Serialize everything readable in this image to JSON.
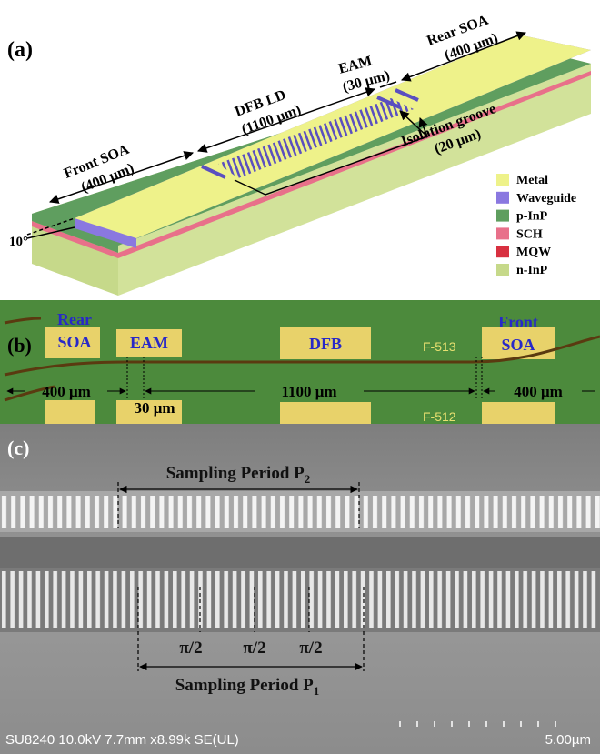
{
  "panel_a": {
    "label": "(a)",
    "front_soa": [
      "Front SOA",
      "(400 μm)"
    ],
    "dfb_ld": [
      "DFB LD",
      "(1100 μm)"
    ],
    "eam": [
      "EAM",
      "(30 μm)"
    ],
    "rear_soa": [
      "Rear SOA",
      "(400 μm)"
    ],
    "isolation_groove": [
      "Isolation groove",
      "(20 μm)"
    ],
    "angle": "10°",
    "legend": [
      {
        "name": "Metal",
        "color": "#eef28a"
      },
      {
        "name": "Waveguide",
        "color": "#8a78e0"
      },
      {
        "name": "p-InP",
        "color": "#5f9e5f"
      },
      {
        "name": "SCH",
        "color": "#e8708a"
      },
      {
        "name": "MQW",
        "color": "#d83040"
      },
      {
        "name": "n-InP",
        "color": "#c6d98a"
      }
    ]
  },
  "panel_b": {
    "label": "(b)",
    "rear_soa": [
      "Rear",
      "SOA"
    ],
    "eam": "EAM",
    "dfb": "DFB",
    "chip_top": "F-513",
    "front_soa": [
      "Front",
      "SOA"
    ],
    "rear_length": "400 μm",
    "eam_length": "30 μm",
    "dfb_length": "1100 μm",
    "front_length": "400 μm",
    "chip_bottom": "F-512"
  },
  "panel_c": {
    "label": "(c)",
    "period_2": {
      "text": "Sampling Period P",
      "sub": "2"
    },
    "phase_shifts": [
      "π/2",
      "π/2",
      "π/2"
    ],
    "period_1": {
      "text": "Sampling Period P",
      "sub": "1"
    },
    "info": "SU8240 10.0kV 7.7mm x8.99k SE(UL)",
    "scale": "5.00µm"
  }
}
